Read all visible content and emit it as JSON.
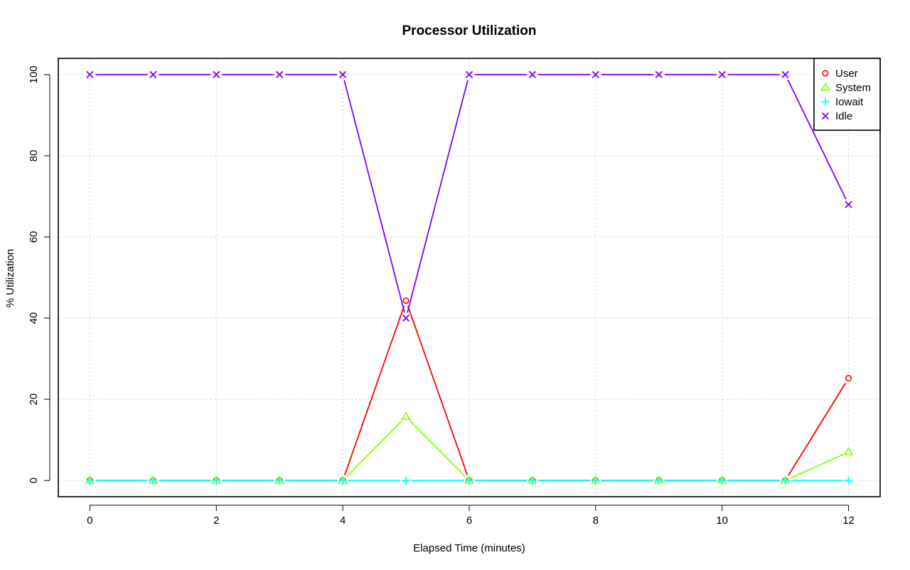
{
  "chart_data": {
    "type": "line",
    "title": "Processor Utilization",
    "xlabel": "Elapsed Time (minutes)",
    "ylabel": "% Utilization",
    "x": [
      0,
      1,
      2,
      3,
      4,
      5,
      6,
      7,
      8,
      9,
      10,
      11,
      12
    ],
    "xlim": [
      -0.5,
      12.5
    ],
    "ylim": [
      -4,
      104
    ],
    "xticks": [
      0,
      2,
      4,
      6,
      8,
      10,
      12
    ],
    "yticks": [
      0,
      20,
      40,
      60,
      80,
      100
    ],
    "grid": true,
    "legend_position": "top-right",
    "series": [
      {
        "name": "User",
        "color": "#FF0000",
        "marker": "circle",
        "values": [
          0,
          0,
          0,
          0,
          0,
          44.3,
          0,
          0,
          0,
          0,
          0,
          0,
          25.2
        ]
      },
      {
        "name": "System",
        "color": "#80FF00",
        "marker": "triangle",
        "values": [
          0,
          0,
          0,
          0,
          0,
          15.7,
          0,
          0,
          0,
          0,
          0,
          0,
          7.0
        ]
      },
      {
        "name": "Iowait",
        "color": "#00FFFF",
        "marker": "plus",
        "values": [
          0,
          0,
          0,
          0,
          0,
          0,
          0,
          0,
          0,
          0,
          0,
          0,
          0
        ]
      },
      {
        "name": "Idle",
        "color": "#8000FF",
        "marker": "cross",
        "values": [
          100,
          100,
          100,
          100,
          100,
          40.0,
          100,
          100,
          100,
          100,
          100,
          100,
          68.0
        ]
      }
    ]
  }
}
